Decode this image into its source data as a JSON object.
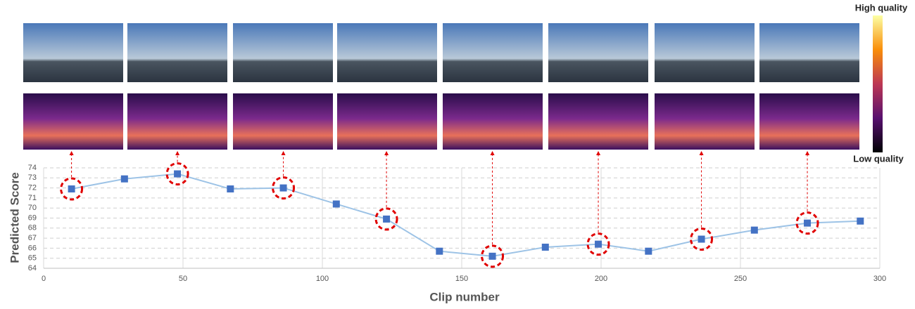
{
  "chart_data": {
    "type": "line",
    "x_label": "Clip number",
    "y_label": "Predicted Score",
    "x": [
      10,
      29,
      48,
      67,
      86,
      105,
      123,
      142,
      161,
      180,
      199,
      217,
      236,
      255,
      274,
      293
    ],
    "series": [
      {
        "color": "#4472c4",
        "line_color": "#9dc3e6",
        "values": [
          71.9,
          72.9,
          73.4,
          71.9,
          72.0,
          70.4,
          68.9,
          65.7,
          65.2,
          66.1,
          66.4,
          65.7,
          66.9,
          67.8,
          68.5,
          68.7
        ]
      }
    ],
    "highlighted": [
      0,
      2,
      4,
      6,
      8,
      10,
      12,
      14
    ],
    "xlim": [
      0,
      300
    ],
    "xticks": [
      0,
      50,
      100,
      150,
      200,
      250,
      300
    ],
    "ylim": [
      64,
      74
    ],
    "yticks": [
      64,
      65,
      66,
      67,
      68,
      69,
      70,
      71,
      72,
      73,
      74
    ],
    "grid": true,
    "colorbar": {
      "high_label": "High quality",
      "low_label": "Low quality"
    }
  }
}
